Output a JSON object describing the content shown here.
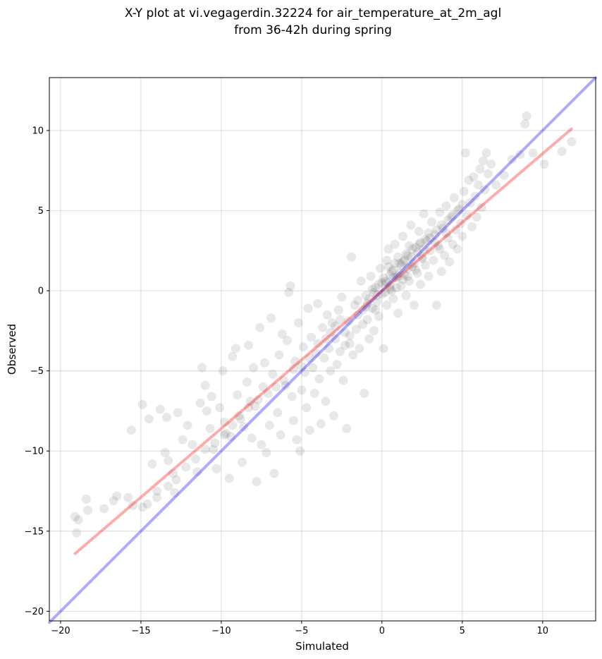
{
  "chart_data": {
    "type": "scatter",
    "title": "X-Y plot at vi.vegagerdin.32224 for air_temperature_at_2m_agl",
    "subtitle": "from 36-42h during spring",
    "xlabel": "Simulated",
    "ylabel": "Observed",
    "xlim": [
      -20.7,
      13.3
    ],
    "ylim": [
      -20.6,
      13.3
    ],
    "xticks": [
      -20,
      -15,
      -10,
      -5,
      0,
      5,
      10
    ],
    "yticks": [
      -20,
      -15,
      -10,
      -5,
      0,
      5,
      10
    ],
    "xtick_labels": [
      "−20",
      "−15",
      "−10",
      "−5",
      "0",
      "5",
      "10"
    ],
    "ytick_labels": [
      "−20",
      "−15",
      "−10",
      "−5",
      "0",
      "5",
      "10"
    ],
    "grid": true,
    "legend": "none",
    "point_color": "#000000",
    "points": [
      [
        -19.1,
        -14.1
      ],
      [
        -18.9,
        -14.3
      ],
      [
        -19.0,
        -15.1
      ],
      [
        -18.4,
        -13.0
      ],
      [
        -18.3,
        -13.7
      ],
      [
        -17.3,
        -13.6
      ],
      [
        -16.7,
        -13.1
      ],
      [
        -16.5,
        -12.8
      ],
      [
        -15.8,
        -12.9
      ],
      [
        -15.5,
        -13.4
      ],
      [
        -15.6,
        -8.7
      ],
      [
        -14.9,
        -7.1
      ],
      [
        -14.5,
        -8.0
      ],
      [
        -14.0,
        -12.5
      ],
      [
        -14.9,
        -13.5
      ],
      [
        -14.6,
        -13.3
      ],
      [
        -14.3,
        -10.8
      ],
      [
        -13.8,
        -7.4
      ],
      [
        -13.4,
        -7.9
      ],
      [
        -13.5,
        -10.1
      ],
      [
        -13.3,
        -10.6
      ],
      [
        -13.0,
        -11.4
      ],
      [
        -12.9,
        -12.6
      ],
      [
        -12.7,
        -7.6
      ],
      [
        -12.4,
        -9.3
      ],
      [
        -12.1,
        -8.4
      ],
      [
        -11.8,
        -9.6
      ],
      [
        -11.5,
        -11.3
      ],
      [
        -11.3,
        -7.0
      ],
      [
        -11.2,
        -4.8
      ],
      [
        -11.0,
        -5.9
      ],
      [
        -10.9,
        -7.5
      ],
      [
        -10.7,
        -8.6
      ],
      [
        -10.6,
        -6.6
      ],
      [
        -10.5,
        -9.9
      ],
      [
        -10.3,
        -11.1
      ],
      [
        -10.1,
        -7.3
      ],
      [
        -9.9,
        -5.0
      ],
      [
        -9.8,
        -8.2
      ],
      [
        -9.7,
        -8.9
      ],
      [
        -9.5,
        -11.7
      ],
      [
        -9.4,
        -9.1
      ],
      [
        -9.3,
        -4.1
      ],
      [
        -9.1,
        -3.6
      ],
      [
        -9.0,
        -6.5
      ],
      [
        -8.9,
        -7.8
      ],
      [
        -8.7,
        -10.7
      ],
      [
        -8.6,
        -8.5
      ],
      [
        -8.4,
        -5.7
      ],
      [
        -8.3,
        -3.4
      ],
      [
        -8.2,
        -6.9
      ],
      [
        -8.1,
        -9.2
      ],
      [
        -8.0,
        -4.8
      ],
      [
        -7.9,
        -7.2
      ],
      [
        -7.8,
        -11.9
      ],
      [
        -7.6,
        -2.3
      ],
      [
        -7.5,
        -9.6
      ],
      [
        -7.4,
        -6.0
      ],
      [
        -7.3,
        -4.5
      ],
      [
        -7.2,
        -10.1
      ],
      [
        -7.0,
        -8.4
      ],
      [
        -6.9,
        -1.7
      ],
      [
        -6.8,
        -5.2
      ],
      [
        -6.7,
        -11.4
      ],
      [
        -6.5,
        -7.6
      ],
      [
        -6.4,
        -4.0
      ],
      [
        -6.3,
        -9.0
      ],
      [
        -6.2,
        -2.7
      ],
      [
        -6.0,
        -5.9
      ],
      [
        -5.9,
        -3.1
      ],
      [
        -5.8,
        -0.1
      ],
      [
        -5.7,
        0.3
      ],
      [
        -5.6,
        -6.6
      ],
      [
        -5.5,
        -8.1
      ],
      [
        -5.4,
        -4.4
      ],
      [
        -5.3,
        -9.3
      ],
      [
        -5.2,
        -2.0
      ],
      [
        -5.1,
        -10.0
      ],
      [
        -5.0,
        -6.2
      ],
      [
        -4.9,
        -3.5
      ],
      [
        -4.8,
        -5.1
      ],
      [
        -4.7,
        -7.3
      ],
      [
        -4.6,
        -1.1
      ],
      [
        -4.5,
        -8.7
      ],
      [
        -4.4,
        -2.9
      ],
      [
        -4.3,
        -4.8
      ],
      [
        -4.2,
        -6.4
      ],
      [
        -4.1,
        -3.9
      ],
      [
        -4.0,
        -0.8
      ],
      [
        -3.9,
        -5.5
      ],
      [
        -3.8,
        -8.3
      ],
      [
        -3.7,
        -2.3
      ],
      [
        -3.6,
        -4.2
      ],
      [
        -3.5,
        -6.9
      ],
      [
        -3.4,
        -1.5
      ],
      [
        -3.3,
        -3.6
      ],
      [
        -3.2,
        -5.0
      ],
      [
        -3.1,
        -2.0
      ],
      [
        -3.0,
        -7.8
      ],
      [
        -2.9,
        -3.0
      ],
      [
        -2.8,
        -4.6
      ],
      [
        -2.7,
        -1.2
      ],
      [
        -2.6,
        -3.8
      ],
      [
        -2.5,
        -0.4
      ],
      [
        -2.4,
        -5.6
      ],
      [
        -2.3,
        -2.6
      ],
      [
        -2.2,
        -8.6
      ],
      [
        -2.1,
        -1.9
      ],
      [
        -2.0,
        -3.3
      ],
      [
        -1.9,
        2.1
      ],
      [
        -1.8,
        -4.0
      ],
      [
        -1.7,
        -0.9
      ],
      [
        -1.6,
        -2.4
      ],
      [
        -1.5,
        -1.5
      ],
      [
        -1.4,
        -3.6
      ],
      [
        -1.3,
        0.6
      ],
      [
        -1.2,
        -2.1
      ],
      [
        -1.1,
        -6.4
      ],
      [
        -1.0,
        -0.3
      ],
      [
        -0.9,
        -1.8
      ],
      [
        -0.8,
        -3.0
      ],
      [
        -0.7,
        0.9
      ],
      [
        -0.6,
        -1.1
      ],
      [
        -0.5,
        -2.5
      ],
      [
        -0.4,
        0.2
      ],
      [
        -0.3,
        -0.7
      ],
      [
        -0.2,
        -1.6
      ],
      [
        -0.1,
        1.4
      ],
      [
        0.0,
        -0.2
      ],
      [
        0.1,
        -3.6
      ],
      [
        0.2,
        0.6
      ],
      [
        0.3,
        -0.9
      ],
      [
        0.4,
        2.6
      ],
      [
        0.5,
        0.1
      ],
      [
        0.6,
        1.2
      ],
      [
        0.7,
        -0.5
      ],
      [
        0.8,
        2.9
      ],
      [
        0.9,
        0.8
      ],
      [
        1.0,
        -1.4
      ],
      [
        1.1,
        1.7
      ],
      [
        1.2,
        0.3
      ],
      [
        1.3,
        3.4
      ],
      [
        1.4,
        1.0
      ],
      [
        1.5,
        -0.3
      ],
      [
        1.6,
        2.2
      ],
      [
        1.7,
        0.6
      ],
      [
        1.8,
        4.1
      ],
      [
        1.9,
        1.5
      ],
      [
        2.0,
        -0.9
      ],
      [
        2.1,
        2.7
      ],
      [
        2.2,
        1.1
      ],
      [
        2.3,
        3.7
      ],
      [
        2.4,
        0.4
      ],
      [
        2.5,
        2.1
      ],
      [
        2.6,
        4.8
      ],
      [
        2.7,
        1.6
      ],
      [
        2.8,
        3.1
      ],
      [
        2.9,
        0.9
      ],
      [
        3.0,
        2.5
      ],
      [
        3.1,
        4.3
      ],
      [
        3.2,
        1.9
      ],
      [
        3.3,
        3.5
      ],
      [
        3.4,
        -0.9
      ],
      [
        3.5,
        2.8
      ],
      [
        3.6,
        4.9
      ],
      [
        3.7,
        1.2
      ],
      [
        3.8,
        3.9
      ],
      [
        3.9,
        2.2
      ],
      [
        4.0,
        5.3
      ],
      [
        4.1,
        3.3
      ],
      [
        4.2,
        1.8
      ],
      [
        4.3,
        4.6
      ],
      [
        4.4,
        2.9
      ],
      [
        4.5,
        5.8
      ],
      [
        4.6,
        3.8
      ],
      [
        4.7,
        2.6
      ],
      [
        4.8,
        5.1
      ],
      [
        4.9,
        4.2
      ],
      [
        5.0,
        3.4
      ],
      [
        5.1,
        6.2
      ],
      [
        5.2,
        8.6
      ],
      [
        5.3,
        4.7
      ],
      [
        5.4,
        6.9
      ],
      [
        5.5,
        5.5
      ],
      [
        5.6,
        4.0
      ],
      [
        5.7,
        7.1
      ],
      [
        5.8,
        5.9
      ],
      [
        5.9,
        4.6
      ],
      [
        6.0,
        6.6
      ],
      [
        6.1,
        7.6
      ],
      [
        6.2,
        5.2
      ],
      [
        6.3,
        8.1
      ],
      [
        6.4,
        6.3
      ],
      [
        6.5,
        8.6
      ],
      [
        6.6,
        7.3
      ],
      [
        6.8,
        7.9
      ],
      [
        7.1,
        6.6
      ],
      [
        7.6,
        7.2
      ],
      [
        8.1,
        8.2
      ],
      [
        8.6,
        8.5
      ],
      [
        8.9,
        10.4
      ],
      [
        9.0,
        10.9
      ],
      [
        9.4,
        8.6
      ],
      [
        10.1,
        7.9
      ],
      [
        11.2,
        8.7
      ],
      [
        11.8,
        9.3
      ],
      [
        0.5,
        1.0
      ],
      [
        0.7,
        1.3
      ],
      [
        1.0,
        0.9
      ],
      [
        1.2,
        1.6
      ],
      [
        1.4,
        1.9
      ],
      [
        0.9,
        0.2
      ],
      [
        1.6,
        1.4
      ],
      [
        1.8,
        2.1
      ],
      [
        2.0,
        1.7
      ],
      [
        2.2,
        2.4
      ],
      [
        0.3,
        0.5
      ],
      [
        0.6,
        0.0
      ],
      [
        1.1,
        1.1
      ],
      [
        1.3,
        0.7
      ],
      [
        1.5,
        2.3
      ],
      [
        1.9,
        2.6
      ],
      [
        2.1,
        1.3
      ],
      [
        2.3,
        2.9
      ],
      [
        2.5,
        2.0
      ],
      [
        2.7,
        3.2
      ],
      [
        -0.5,
        -0.1
      ],
      [
        -0.2,
        0.4
      ],
      [
        0.1,
        0.8
      ],
      [
        0.4,
        1.5
      ],
      [
        0.8,
        1.7
      ],
      [
        1.0,
        2.1
      ],
      [
        1.7,
        2.8
      ],
      [
        2.4,
        3.0
      ],
      [
        2.9,
        3.6
      ],
      [
        3.3,
        3.0
      ],
      [
        -1.0,
        -1.0
      ],
      [
        -0.8,
        -0.5
      ],
      [
        -0.6,
        0.1
      ],
      [
        -0.3,
        -0.3
      ],
      [
        0.0,
        0.5
      ],
      [
        0.2,
        -0.1
      ],
      [
        0.5,
        0.3
      ],
      [
        0.7,
        0.8
      ],
      [
        1.3,
        1.8
      ],
      [
        1.6,
        0.9
      ],
      [
        2.6,
        2.6
      ],
      [
        3.0,
        3.3
      ],
      [
        3.4,
        3.8
      ],
      [
        3.7,
        4.1
      ],
      [
        4.1,
        4.4
      ],
      [
        4.4,
        4.7
      ],
      [
        4.7,
        5.0
      ],
      [
        5.0,
        5.4
      ],
      [
        3.6,
        2.6
      ],
      [
        4.0,
        3.6
      ],
      [
        -3.5,
        -3.0
      ],
      [
        -3.2,
        -2.6
      ],
      [
        -2.9,
        -2.2
      ],
      [
        -2.6,
        -1.8
      ],
      [
        -2.3,
        -3.4
      ],
      [
        -4.0,
        -3.3
      ],
      [
        -4.5,
        -4.2
      ],
      [
        -5.0,
        -4.7
      ],
      [
        -5.5,
        -4.9
      ],
      [
        -6.1,
        -5.6
      ],
      [
        -6.6,
        -6.0
      ],
      [
        -7.1,
        -6.4
      ],
      [
        -7.7,
        -6.8
      ],
      [
        -8.3,
        -7.3
      ],
      [
        -8.8,
        -8.0
      ],
      [
        -9.3,
        -8.4
      ],
      [
        -9.8,
        -9.0
      ],
      [
        -10.4,
        -9.5
      ],
      [
        -11.0,
        -9.9
      ],
      [
        -11.6,
        -10.5
      ],
      [
        -12.2,
        -11.0
      ],
      [
        -12.8,
        -11.8
      ],
      [
        -13.3,
        -12.2
      ],
      [
        -14.0,
        -12.9
      ],
      [
        -2.0,
        -2.8
      ],
      [
        -1.5,
        -0.6
      ],
      [
        -1.2,
        -1.2
      ],
      [
        -0.9,
        -0.8
      ],
      [
        -0.4,
        -1.2
      ],
      [
        0.3,
        1.9
      ]
    ],
    "reference_lines": [
      {
        "color": "#0000ff",
        "x": [
          -20.7,
          13.3
        ],
        "y": [
          -20.7,
          13.3
        ]
      },
      {
        "color": "#ff0000",
        "x": [
          -19.1,
          11.8
        ],
        "y": [
          -16.4,
          10.1
        ]
      }
    ]
  }
}
